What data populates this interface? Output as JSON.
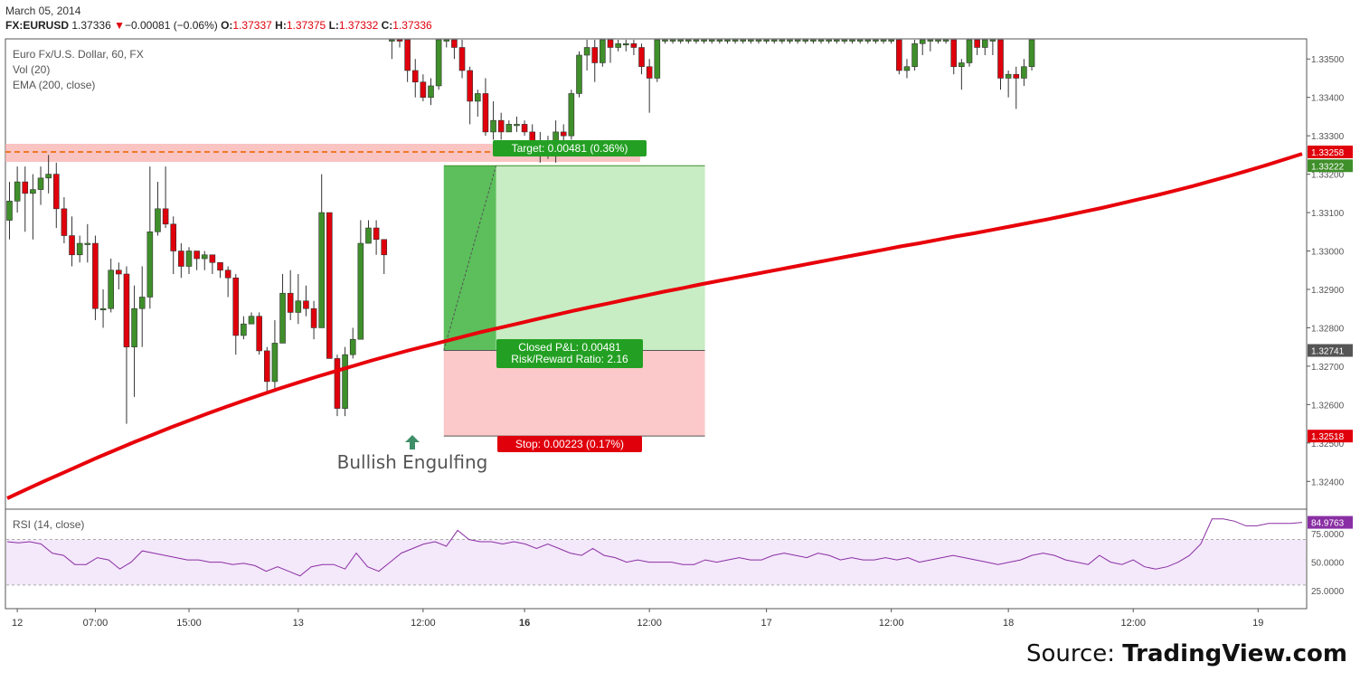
{
  "header": {
    "date": "March 05, 2014",
    "symbol": "FX:EURUSD",
    "last": "1.37336",
    "change_icon": "triangle-down-icon",
    "change": "−0.00081 (−0.06%)",
    "o_label": "O:",
    "o_val": "1.37337",
    "h_label": "H:",
    "h_val": "1.37375",
    "l_label": "L:",
    "l_val": "1.37332",
    "c_label": "C:",
    "c_val": "1.37336"
  },
  "legend": {
    "series_title": "Euro Fx/U.S. Dollar, 60, FX",
    "vol": "Vol (20)",
    "ema": "EMA (200, close)"
  },
  "rsi_label": "RSI (14, close)",
  "source": {
    "prefix": "Source: ",
    "brand": "TradingView.com"
  },
  "colors": {
    "up": "#3f8f2a",
    "down": "#e0000c",
    "ema": "#e8000a",
    "rsi": "#8a2fa3",
    "target_zone": "#c8ecc4",
    "target_zone_dark": "#5cbf5c",
    "stop_zone": "#fbc9c9",
    "resistance_band": "#f7b0ae",
    "resistance_line": "#f07a2a"
  },
  "annotations": {
    "target_label": "Target: 0.00481 (0.36%)",
    "pnl_label": "Closed P&L: 0.00481",
    "rr_label": "Risk/Reward Ratio: 2.16",
    "stop_label": "Stop: 0.00223 (0.17%)",
    "pattern_label": "Bullish Engulfing",
    "pattern_icon": "arrow-up-icon"
  },
  "chart_data": {
    "type": "candlestick",
    "price_axis": {
      "ticks": [
        "1.33500",
        "1.33400",
        "1.33300",
        "1.33200",
        "1.33100",
        "1.33000",
        "1.32900",
        "1.32800",
        "1.32700",
        "1.32600",
        "1.32500",
        "1.32400"
      ],
      "values": [
        1.335,
        1.334,
        1.333,
        1.332,
        1.331,
        1.33,
        1.329,
        1.328,
        1.327,
        1.326,
        1.325,
        1.324
      ],
      "range": [
        1.3233,
        1.3355
      ],
      "markers": [
        {
          "label": "1.33258",
          "value": 1.33258,
          "color": "#e0000c"
        },
        {
          "label": "1.33222",
          "value": 1.33222,
          "color": "#3f8f2a"
        },
        {
          "label": "1.32741",
          "value": 1.32741,
          "color": "#555555"
        },
        {
          "label": "1.32518",
          "value": 1.32518,
          "color": "#e0000c"
        }
      ]
    },
    "time_axis": {
      "labels": [
        "12",
        "07:00",
        "15:00",
        "13",
        "12:00",
        "16",
        "12:00",
        "17",
        "12:00",
        "18",
        "12:00",
        "19"
      ],
      "bold": [
        false,
        false,
        false,
        false,
        false,
        true,
        false,
        false,
        false,
        false,
        false,
        false
      ],
      "index": [
        1,
        11,
        23,
        37,
        53,
        66,
        82,
        97,
        113,
        128,
        144,
        160
      ]
    },
    "trade": {
      "entry": 1.32741,
      "target": 1.33222,
      "stop": 1.32518,
      "entry_index": 56,
      "exit_index": 62,
      "end_index": 89
    },
    "resistance": 1.33258,
    "candles": [
      [
        1.3308,
        1.3313,
        1.3318,
        1.3303
      ],
      [
        1.3313,
        1.3318,
        1.3322,
        1.331
      ],
      [
        1.3318,
        1.3315,
        1.3322,
        1.3305
      ],
      [
        1.3315,
        1.3316,
        1.332,
        1.3303
      ],
      [
        1.3316,
        1.3319,
        1.3322,
        1.3312
      ],
      [
        1.3319,
        1.332,
        1.3325,
        1.3315
      ],
      [
        1.332,
        1.3311,
        1.3323,
        1.3306
      ],
      [
        1.3311,
        1.3304,
        1.3314,
        1.3302
      ],
      [
        1.3304,
        1.3299,
        1.3309,
        1.3296
      ],
      [
        1.3299,
        1.3302,
        1.3304,
        1.3297
      ],
      [
        1.3302,
        1.3302,
        1.3307,
        1.3297
      ],
      [
        1.3302,
        1.3285,
        1.3304,
        1.3282
      ],
      [
        1.3285,
        1.3285,
        1.329,
        1.328
      ],
      [
        1.3285,
        1.3295,
        1.3298,
        1.3284
      ],
      [
        1.3295,
        1.3294,
        1.3297,
        1.329
      ],
      [
        1.3294,
        1.3275,
        1.3296,
        1.3255
      ],
      [
        1.3275,
        1.3285,
        1.3291,
        1.3262
      ],
      [
        1.3285,
        1.3288,
        1.3296,
        1.3275
      ],
      [
        1.3288,
        1.3305,
        1.3322,
        1.3285
      ],
      [
        1.3305,
        1.3311,
        1.3318,
        1.3304
      ],
      [
        1.3311,
        1.3307,
        1.3322,
        1.3306
      ],
      [
        1.3307,
        1.33,
        1.3309,
        1.3294
      ],
      [
        1.33,
        1.3296,
        1.3302,
        1.3293
      ],
      [
        1.3296,
        1.33,
        1.3301,
        1.3294
      ],
      [
        1.33,
        1.3298,
        1.33,
        1.3295
      ],
      [
        1.3298,
        1.3299,
        1.33,
        1.3295
      ],
      [
        1.3299,
        1.3297,
        1.3299,
        1.3294
      ],
      [
        1.3297,
        1.3295,
        1.3297,
        1.3293
      ],
      [
        1.3295,
        1.3293,
        1.3296,
        1.3288
      ],
      [
        1.3293,
        1.3278,
        1.3294,
        1.3273
      ],
      [
        1.3278,
        1.3281,
        1.3283,
        1.3277
      ],
      [
        1.3281,
        1.3283,
        1.3284,
        1.3281
      ],
      [
        1.3283,
        1.3274,
        1.3284,
        1.3273
      ],
      [
        1.3274,
        1.3266,
        1.3275,
        1.3263
      ],
      [
        1.3266,
        1.3276,
        1.3282,
        1.3264
      ],
      [
        1.3276,
        1.3289,
        1.3294,
        1.3276
      ],
      [
        1.3289,
        1.3284,
        1.3295,
        1.3282
      ],
      [
        1.3284,
        1.3287,
        1.3294,
        1.3281
      ],
      [
        1.3287,
        1.3285,
        1.3291,
        1.3283
      ],
      [
        1.3285,
        1.328,
        1.3287,
        1.3277
      ],
      [
        1.328,
        1.331,
        1.332,
        1.328
      ],
      [
        1.331,
        1.3272,
        1.331,
        1.3272
      ],
      [
        1.3272,
        1.3259,
        1.3273,
        1.3257
      ],
      [
        1.3259,
        1.3273,
        1.3275,
        1.3257
      ],
      [
        1.3273,
        1.3277,
        1.328,
        1.3272
      ],
      [
        1.3277,
        1.3302,
        1.3308,
        1.3277
      ],
      [
        1.3302,
        1.3306,
        1.3308,
        1.3302
      ],
      [
        1.3306,
        1.3303,
        1.3308,
        1.3299
      ],
      [
        1.3303,
        1.3299,
        1.3301,
        1.3294
      ],
      [
        1.3355,
        1.3356,
        1.3359,
        1.335
      ],
      [
        1.3356,
        1.3355,
        1.3358,
        1.3353
      ],
      [
        1.3355,
        1.3347,
        1.3356,
        1.3344
      ],
      [
        1.3347,
        1.3344,
        1.335,
        1.334
      ],
      [
        1.3344,
        1.334,
        1.3346,
        1.3339
      ],
      [
        1.334,
        1.3343,
        1.3345,
        1.3338
      ],
      [
        1.3343,
        1.3355,
        1.3356,
        1.3342
      ],
      [
        1.3355,
        1.3355,
        1.3357,
        1.3353
      ],
      [
        1.3355,
        1.3353,
        1.3356,
        1.335
      ],
      [
        1.3353,
        1.3347,
        1.3355,
        1.3345
      ],
      [
        1.3347,
        1.3339,
        1.3348,
        1.3333
      ],
      [
        1.3339,
        1.3341,
        1.3342,
        1.3335
      ],
      [
        1.3341,
        1.3331,
        1.3345,
        1.333
      ],
      [
        1.3331,
        1.3334,
        1.3339,
        1.3329
      ],
      [
        1.3334,
        1.3331,
        1.3336,
        1.3329
      ],
      [
        1.3331,
        1.3333,
        1.3334,
        1.3331
      ],
      [
        1.3333,
        1.3333,
        1.3335,
        1.3331
      ],
      [
        1.3333,
        1.3331,
        1.3334,
        1.333
      ],
      [
        1.3331,
        1.3326,
        1.3333,
        1.3325
      ],
      [
        1.3326,
        1.3327,
        1.3331,
        1.3323
      ],
      [
        1.3327,
        1.3325,
        1.333,
        1.3324
      ],
      [
        1.3325,
        1.3331,
        1.3334,
        1.3323
      ],
      [
        1.3331,
        1.333,
        1.3333,
        1.3328
      ],
      [
        1.333,
        1.3341,
        1.3342,
        1.3329
      ],
      [
        1.3341,
        1.3351,
        1.3352,
        1.334
      ],
      [
        1.3351,
        1.3353,
        1.3356,
        1.3347
      ],
      [
        1.3353,
        1.3349,
        1.3355,
        1.3344
      ],
      [
        1.3349,
        1.3355,
        1.3356,
        1.3348
      ],
      [
        1.3355,
        1.3353,
        1.3356,
        1.3349
      ],
      [
        1.3353,
        1.3354,
        1.3357,
        1.3352
      ],
      [
        1.3354,
        1.3354,
        1.3356,
        1.3352
      ],
      [
        1.3354,
        1.3353,
        1.3355,
        1.3351
      ],
      [
        1.3353,
        1.3348,
        1.3354,
        1.3346
      ],
      [
        1.3348,
        1.3345,
        1.335,
        1.3336
      ],
      [
        1.3345,
        1.3355,
        1.3356,
        1.3344
      ],
      [
        1.3355,
        1.3355,
        1.3357,
        1.3354
      ],
      [
        1.3355,
        1.3355,
        1.3356,
        1.3354
      ],
      [
        1.3355,
        1.3355,
        1.3356,
        1.3354
      ],
      [
        1.3355,
        1.3355,
        1.3356,
        1.3354
      ],
      [
        1.3355,
        1.3355,
        1.3356,
        1.3354
      ],
      [
        1.3355,
        1.3355,
        1.3356,
        1.3354
      ],
      [
        1.3355,
        1.3355,
        1.3356,
        1.3354
      ],
      [
        1.3355,
        1.3355,
        1.3356,
        1.3354
      ],
      [
        1.3355,
        1.3355,
        1.3356,
        1.3354
      ],
      [
        1.3355,
        1.3355,
        1.3356,
        1.3354
      ],
      [
        1.3355,
        1.3355,
        1.3356,
        1.3354
      ],
      [
        1.3355,
        1.3355,
        1.3356,
        1.3354
      ],
      [
        1.3355,
        1.3355,
        1.3356,
        1.3354
      ],
      [
        1.3355,
        1.3355,
        1.3356,
        1.3354
      ],
      [
        1.3355,
        1.3355,
        1.3356,
        1.3354
      ],
      [
        1.3355,
        1.3355,
        1.3356,
        1.3354
      ],
      [
        1.3355,
        1.3355,
        1.3356,
        1.3354
      ],
      [
        1.3355,
        1.3355,
        1.3356,
        1.3354
      ],
      [
        1.3355,
        1.3355,
        1.3356,
        1.3354
      ],
      [
        1.3355,
        1.3355,
        1.3356,
        1.3354
      ],
      [
        1.3355,
        1.3355,
        1.3356,
        1.3354
      ],
      [
        1.3355,
        1.3355,
        1.3356,
        1.3354
      ],
      [
        1.3355,
        1.3355,
        1.3356,
        1.3354
      ],
      [
        1.3355,
        1.3355,
        1.3356,
        1.3354
      ],
      [
        1.3355,
        1.3355,
        1.3356,
        1.3354
      ],
      [
        1.3355,
        1.3355,
        1.3356,
        1.3354
      ],
      [
        1.3355,
        1.3355,
        1.3356,
        1.3354
      ],
      [
        1.3355,
        1.3355,
        1.3356,
        1.3354
      ],
      [
        1.3355,
        1.3355,
        1.3356,
        1.3354
      ],
      [
        1.3355,
        1.3355,
        1.3356,
        1.3354
      ],
      [
        1.3355,
        1.3347,
        1.3356,
        1.3346
      ],
      [
        1.3347,
        1.3348,
        1.335,
        1.3345
      ],
      [
        1.3348,
        1.3354,
        1.3355,
        1.3347
      ],
      [
        1.3354,
        1.3355,
        1.3356,
        1.3351
      ],
      [
        1.3355,
        1.3355,
        1.3356,
        1.3352
      ],
      [
        1.3355,
        1.3355,
        1.3356,
        1.3354
      ],
      [
        1.3355,
        1.3355,
        1.3356,
        1.3354
      ],
      [
        1.3355,
        1.3348,
        1.3356,
        1.3346
      ],
      [
        1.3348,
        1.3349,
        1.335,
        1.3342
      ],
      [
        1.3349,
        1.3355,
        1.3356,
        1.3348
      ],
      [
        1.3355,
        1.3353,
        1.3356,
        1.3351
      ],
      [
        1.3353,
        1.3355,
        1.3356,
        1.3351
      ],
      [
        1.3355,
        1.3355,
        1.3356,
        1.3351
      ],
      [
        1.3355,
        1.3345,
        1.3356,
        1.3342
      ],
      [
        1.3345,
        1.3346,
        1.3347,
        1.334
      ],
      [
        1.3346,
        1.3345,
        1.3348,
        1.3337
      ],
      [
        1.3345,
        1.3348,
        1.335,
        1.3343
      ],
      [
        1.3348,
        1.3355,
        1.3356,
        1.3347
      ]
    ],
    "ema": [
      1.32356,
      1.32378,
      1.324,
      1.32421,
      1.32442,
      1.32463,
      1.32483,
      1.32503,
      1.32522,
      1.32541,
      1.32559,
      1.32577,
      1.32594,
      1.32611,
      1.32627,
      1.32643,
      1.32658,
      1.32673,
      1.32687,
      1.32701,
      1.32715,
      1.32728,
      1.32741,
      1.32753,
      1.32765,
      1.32777,
      1.32789,
      1.328,
      1.32811,
      1.32822,
      1.32833,
      1.32844,
      1.32854,
      1.32864,
      1.32874,
      1.32884,
      1.32894,
      1.32903,
      1.32913,
      1.32922,
      1.32931,
      1.3294,
      1.32949,
      1.32958,
      1.32967,
      1.32976,
      1.32985,
      1.32994,
      1.33003,
      1.33012,
      1.3302,
      1.33029,
      1.33038,
      1.33046,
      1.33055,
      1.33064,
      1.33073,
      1.33082,
      1.33092,
      1.33102,
      1.33112,
      1.33123,
      1.33134,
      1.33145,
      1.33157,
      1.33169,
      1.33182,
      1.33195,
      1.33209,
      1.33223,
      1.33238,
      1.33253
    ],
    "rsi": {
      "label": "RSI (14, close)",
      "last": "84.9763",
      "ticks": [
        "75.0000",
        "50.0000",
        "25.0000"
      ],
      "tick_values": [
        75,
        50,
        25
      ],
      "range": [
        10,
        95
      ],
      "band": [
        30,
        70
      ]
    }
  }
}
